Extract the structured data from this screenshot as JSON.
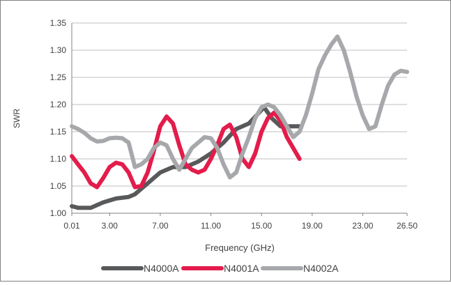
{
  "chart_data": {
    "type": "line",
    "title": "",
    "xlabel": "Frequency (GHz)",
    "ylabel": "SWR",
    "xlim": [
      0.01,
      26.5
    ],
    "ylim": [
      1.0,
      1.35
    ],
    "x_ticks": [
      "0.01",
      "3.00",
      "7.00",
      "11.00",
      "15.00",
      "19.00",
      "23.00",
      "26.50"
    ],
    "x_tick_values": [
      0.01,
      3.0,
      7.0,
      11.0,
      15.0,
      19.0,
      23.0,
      26.5
    ],
    "y_ticks": [
      "1.00",
      "1.05",
      "1.10",
      "1.15",
      "1.20",
      "1.25",
      "1.30",
      "1.35"
    ],
    "y_tick_values": [
      1.0,
      1.05,
      1.1,
      1.15,
      1.2,
      1.25,
      1.3,
      1.35
    ],
    "grid": "horizontal",
    "legend_position": "bottom",
    "series": [
      {
        "name": "N4000A",
        "color": "#58595b",
        "x": [
          0.01,
          0.5,
          1.5,
          2.5,
          3.5,
          4.5,
          5.0,
          6.0,
          7.0,
          8.0,
          9.0,
          10.0,
          11.0,
          12.0,
          13.0,
          14.0,
          14.8,
          15.2,
          15.8,
          16.5,
          17.3,
          18.0
        ],
        "y": [
          1.013,
          1.01,
          1.01,
          1.02,
          1.027,
          1.03,
          1.035,
          1.055,
          1.075,
          1.085,
          1.085,
          1.095,
          1.11,
          1.13,
          1.155,
          1.165,
          1.185,
          1.195,
          1.175,
          1.16,
          1.16,
          1.16
        ]
      },
      {
        "name": "N4001A",
        "color": "#e31c4b",
        "x": [
          0.01,
          0.5,
          1.0,
          1.5,
          2.0,
          2.5,
          3.0,
          3.5,
          4.0,
          4.5,
          5.0,
          5.5,
          6.0,
          6.5,
          7.0,
          7.5,
          8.0,
          8.5,
          9.0,
          9.5,
          10.0,
          10.5,
          11.0,
          11.5,
          12.0,
          12.5,
          13.0,
          13.5,
          14.0,
          14.5,
          15.0,
          15.5,
          16.0,
          16.5,
          17.0,
          17.5,
          18.0
        ],
        "y": [
          1.105,
          1.09,
          1.075,
          1.055,
          1.048,
          1.065,
          1.085,
          1.093,
          1.09,
          1.075,
          1.048,
          1.05,
          1.075,
          1.115,
          1.16,
          1.178,
          1.165,
          1.125,
          1.09,
          1.08,
          1.075,
          1.08,
          1.1,
          1.125,
          1.155,
          1.163,
          1.14,
          1.1,
          1.085,
          1.11,
          1.15,
          1.175,
          1.185,
          1.17,
          1.14,
          1.12,
          1.1
        ]
      },
      {
        "name": "N4002A",
        "color": "#a6a8ab",
        "x": [
          0.01,
          0.5,
          1.0,
          1.5,
          2.0,
          2.5,
          3.0,
          3.5,
          4.0,
          4.5,
          5.0,
          5.5,
          6.0,
          6.5,
          7.0,
          7.5,
          8.0,
          8.5,
          9.0,
          9.5,
          10.0,
          10.5,
          11.0,
          11.5,
          12.0,
          12.5,
          13.0,
          13.5,
          14.0,
          14.5,
          15.0,
          15.5,
          16.0,
          16.5,
          17.0,
          17.5,
          18.0,
          18.5,
          19.0,
          19.5,
          20.0,
          20.5,
          21.0,
          21.5,
          22.0,
          22.5,
          23.0,
          23.5,
          24.0,
          24.5,
          25.0,
          25.5,
          26.0,
          26.5
        ],
        "y": [
          1.16,
          1.155,
          1.148,
          1.138,
          1.132,
          1.133,
          1.138,
          1.139,
          1.138,
          1.13,
          1.085,
          1.09,
          1.1,
          1.12,
          1.13,
          1.125,
          1.1,
          1.08,
          1.1,
          1.12,
          1.13,
          1.14,
          1.138,
          1.12,
          1.09,
          1.066,
          1.075,
          1.11,
          1.14,
          1.175,
          1.195,
          1.2,
          1.195,
          1.18,
          1.16,
          1.14,
          1.15,
          1.18,
          1.22,
          1.265,
          1.29,
          1.31,
          1.325,
          1.3,
          1.26,
          1.215,
          1.18,
          1.155,
          1.16,
          1.2,
          1.235,
          1.255,
          1.262,
          1.26
        ]
      }
    ]
  }
}
